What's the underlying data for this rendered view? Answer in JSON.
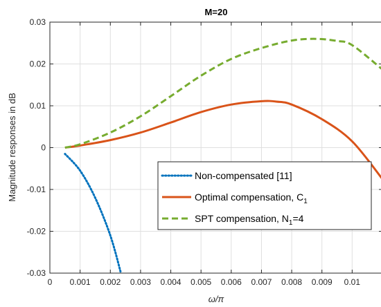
{
  "chart_data": {
    "type": "line",
    "title": "M=20",
    "xlabel": "ω/π",
    "ylabel": "Magnitude responses in dB",
    "xlim": [
      0,
      0.011
    ],
    "ylim": [
      -0.03,
      0.03
    ],
    "xticks": [
      0,
      0.001,
      0.002,
      0.003,
      0.004,
      0.005,
      0.006,
      0.007,
      0.008,
      0.009,
      0.01
    ],
    "xtick_labels": [
      "0",
      "0.001",
      "0.002",
      "0.003",
      "0.004",
      "0.005",
      "0.006",
      "0.007",
      "0.008",
      "0.009",
      "0.01"
    ],
    "yticks": [
      -0.03,
      -0.02,
      -0.01,
      0,
      0.01,
      0.02,
      0.03
    ],
    "ytick_labels": [
      "-0.03",
      "-0.02",
      "-0.01",
      "0",
      "0.01",
      "0.02",
      "0.03"
    ],
    "grid": true,
    "legend_position": "lower-right",
    "series": [
      {
        "name": "Non-compensated [11]",
        "name_sub": "",
        "name_after": "",
        "color": "#0072BD",
        "style": "dotted",
        "x": [
          0.0005,
          0.001,
          0.0015,
          0.002,
          0.00235
        ],
        "y": [
          -0.0015,
          -0.0055,
          -0.012,
          -0.021,
          -0.03
        ]
      },
      {
        "name": "Optimal compensation, C",
        "name_sub": "1",
        "name_after": "",
        "color": "#D95319",
        "style": "solid",
        "x": [
          0.0005,
          0.001,
          0.002,
          0.003,
          0.004,
          0.005,
          0.006,
          0.007,
          0.0075,
          0.008,
          0.009,
          0.01,
          0.011
        ],
        "y": [
          0.0,
          0.0005,
          0.0018,
          0.0036,
          0.006,
          0.0085,
          0.0103,
          0.0111,
          0.011,
          0.0103,
          0.0068,
          0.0015,
          -0.0075
        ]
      },
      {
        "name": "SPT compensation, N",
        "name_sub": "1",
        "name_after": "=4",
        "color": "#77AC30",
        "style": "dashed",
        "x": [
          0.0005,
          0.001,
          0.002,
          0.003,
          0.004,
          0.005,
          0.006,
          0.007,
          0.008,
          0.0088,
          0.0095,
          0.01,
          0.011
        ],
        "y": [
          0.0,
          0.0008,
          0.0036,
          0.0075,
          0.0123,
          0.0172,
          0.0212,
          0.0238,
          0.0256,
          0.026,
          0.0255,
          0.0245,
          0.0187
        ]
      }
    ]
  }
}
